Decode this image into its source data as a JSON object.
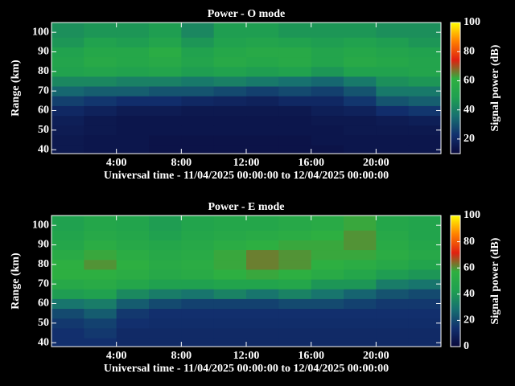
{
  "chart_data": [
    {
      "type": "heatmap",
      "title": "Power - O mode",
      "x_label": "Universal time - 11/04/2025 00:00:00 to 12/04/2025 00:00:00",
      "y_label": "Range (km)",
      "colorbar_label": "Signal power (dB)",
      "xlim": [
        0,
        24
      ],
      "xticks": [
        {
          "value": 4,
          "label": "4:00"
        },
        {
          "value": 8,
          "label": "8:00"
        },
        {
          "value": 12,
          "label": "12:00"
        },
        {
          "value": 16,
          "label": "16:00"
        },
        {
          "value": 20,
          "label": "20:00"
        }
      ],
      "ylim": [
        38,
        105
      ],
      "yticks": [
        40,
        50,
        60,
        70,
        80,
        90,
        100
      ],
      "clim": [
        10,
        100
      ],
      "cticks": [
        20,
        40,
        60,
        80,
        100
      ],
      "colormap": [
        "#0a0a3c",
        "#12306e",
        "#177070",
        "#1fa050",
        "#2eb040",
        "#e02010",
        "#ff8000",
        "#ffff00"
      ],
      "x": [
        1,
        3,
        5,
        7,
        9,
        11,
        13,
        15,
        17,
        19,
        21,
        23
      ],
      "y": [
        40,
        45,
        50,
        55,
        60,
        65,
        70,
        75,
        80,
        85,
        90,
        95,
        100
      ],
      "values": [
        [
          15,
          14,
          14,
          13,
          13,
          13,
          13,
          13,
          13,
          14,
          14,
          14
        ],
        [
          15,
          14,
          14,
          13,
          13,
          13,
          13,
          13,
          14,
          14,
          14,
          14
        ],
        [
          16,
          15,
          14,
          14,
          14,
          14,
          14,
          14,
          14,
          15,
          15,
          15
        ],
        [
          17,
          15,
          14,
          14,
          14,
          14,
          14,
          14,
          15,
          15,
          16,
          17
        ],
        [
          20,
          18,
          16,
          16,
          15,
          15,
          15,
          15,
          17,
          18,
          22,
          24
        ],
        [
          26,
          24,
          22,
          22,
          20,
          19,
          18,
          20,
          20,
          24,
          30,
          32
        ],
        [
          34,
          32,
          32,
          30,
          30,
          28,
          26,
          28,
          26,
          30,
          38,
          38
        ],
        [
          42,
          42,
          40,
          40,
          38,
          40,
          38,
          36,
          34,
          38,
          44,
          46
        ],
        [
          50,
          52,
          50,
          52,
          48,
          50,
          48,
          50,
          46,
          50,
          50,
          52
        ],
        [
          52,
          56,
          54,
          56,
          52,
          56,
          54,
          56,
          52,
          56,
          54,
          52
        ],
        [
          50,
          54,
          54,
          58,
          50,
          54,
          56,
          56,
          52,
          54,
          52,
          50
        ],
        [
          46,
          50,
          48,
          52,
          46,
          50,
          52,
          50,
          48,
          50,
          48,
          46
        ],
        [
          44,
          46,
          46,
          48,
          42,
          48,
          48,
          46,
          46,
          46,
          44,
          44
        ]
      ]
    },
    {
      "type": "heatmap",
      "title": "Power - E mode",
      "x_label": "Universal time - 11/04/2025 00:00:00 to 12/04/2025 00:00:00",
      "y_label": "Range (km)",
      "colorbar_label": "Signal power (dB)",
      "xlim": [
        0,
        24
      ],
      "xticks": [
        {
          "value": 4,
          "label": "4:00"
        },
        {
          "value": 8,
          "label": "8:00"
        },
        {
          "value": 12,
          "label": "12:00"
        },
        {
          "value": 16,
          "label": "16:00"
        },
        {
          "value": 20,
          "label": "20:00"
        }
      ],
      "ylim": [
        38,
        105
      ],
      "yticks": [
        40,
        50,
        60,
        70,
        80,
        90,
        100
      ],
      "clim": [
        0,
        100
      ],
      "cticks": [
        0,
        20,
        40,
        60,
        80,
        100
      ],
      "colormap": [
        "#0a0a3c",
        "#12306e",
        "#177070",
        "#1fa050",
        "#2eb040",
        "#e02010",
        "#ff8000",
        "#ffff00"
      ],
      "x": [
        1,
        3,
        5,
        7,
        9,
        11,
        13,
        15,
        17,
        19,
        21,
        23
      ],
      "y": [
        40,
        45,
        50,
        55,
        60,
        65,
        70,
        75,
        80,
        85,
        90,
        95,
        100
      ],
      "values": [
        [
          14,
          14,
          12,
          12,
          12,
          12,
          12,
          12,
          12,
          12,
          12,
          12
        ],
        [
          14,
          16,
          12,
          12,
          12,
          12,
          12,
          12,
          12,
          12,
          12,
          12
        ],
        [
          16,
          18,
          14,
          13,
          13,
          13,
          13,
          13,
          13,
          13,
          13,
          13
        ],
        [
          20,
          24,
          16,
          14,
          14,
          14,
          14,
          14,
          14,
          14,
          14,
          14
        ],
        [
          30,
          32,
          24,
          20,
          18,
          18,
          18,
          20,
          20,
          18,
          16,
          16
        ],
        [
          42,
          44,
          36,
          32,
          30,
          34,
          30,
          34,
          30,
          26,
          22,
          20
        ],
        [
          50,
          52,
          48,
          44,
          44,
          46,
          46,
          48,
          40,
          40,
          32,
          30
        ],
        [
          56,
          56,
          54,
          50,
          52,
          56,
          58,
          56,
          52,
          48,
          42,
          40
        ],
        [
          56,
          60,
          56,
          52,
          54,
          58,
          62,
          60,
          56,
          54,
          50,
          46
        ],
        [
          52,
          58,
          54,
          50,
          52,
          58,
          62,
          60,
          58,
          58,
          54,
          50
        ],
        [
          48,
          54,
          50,
          48,
          50,
          54,
          56,
          58,
          58,
          60,
          52,
          48
        ],
        [
          46,
          50,
          48,
          44,
          48,
          50,
          52,
          54,
          56,
          60,
          50,
          46
        ],
        [
          44,
          48,
          46,
          42,
          46,
          48,
          48,
          50,
          52,
          58,
          48,
          46
        ]
      ]
    }
  ]
}
